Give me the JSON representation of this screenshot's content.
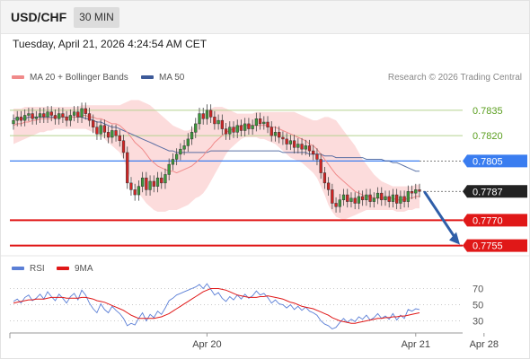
{
  "header": {
    "symbol": "USD/CHF",
    "timeframe": "30 MIN"
  },
  "timestamp": "Tuesday, April 21, 2026 4:24:54 AM CET",
  "legend": {
    "items": [
      {
        "label": "MA 20 + Bollinger Bands",
        "color": "#f08a8a"
      },
      {
        "label": "MA 50",
        "color": "#3d5a99"
      }
    ],
    "credit": "Research © 2026 Trading Central"
  },
  "chart_data": [
    {
      "type": "candlestick",
      "title": "",
      "ylim": [
        0.775,
        0.7845
      ],
      "levels": [
        {
          "value": 0.7835,
          "label": "0.7835",
          "kind": "resistance",
          "color": "#b5d38f",
          "text_color": "#5a9e1e"
        },
        {
          "value": 0.782,
          "label": "0.7820",
          "kind": "resistance",
          "color": "#b5d38f",
          "text_color": "#5a9e1e"
        },
        {
          "value": 0.7805,
          "label": "0.7805",
          "kind": "pivot",
          "color": "#3a7df0",
          "text_color": "#ffffff"
        },
        {
          "value": 0.7787,
          "label": "0.7787",
          "kind": "last",
          "color": "#222222",
          "text_color": "#ffffff"
        },
        {
          "value": 0.777,
          "label": "0.7770",
          "kind": "support",
          "color": "#e01818",
          "text_color": "#ffffff"
        },
        {
          "value": 0.7755,
          "label": "0.7755",
          "kind": "support",
          "color": "#e01818",
          "text_color": "#ffffff"
        }
      ],
      "x_labels": [
        {
          "label": "Apr 20",
          "index": 51
        },
        {
          "label": "Apr 21",
          "index": 106
        },
        {
          "label": "Apr 28",
          "index": 124
        }
      ],
      "forecast": {
        "from": 0.7787,
        "to": 0.7755
      },
      "close": [
        0.7829,
        0.7831,
        0.7829,
        0.7832,
        0.7833,
        0.783,
        0.7831,
        0.7833,
        0.7831,
        0.7834,
        0.7832,
        0.783,
        0.7833,
        0.7831,
        0.7829,
        0.7832,
        0.7834,
        0.7831,
        0.7836,
        0.7833,
        0.7829,
        0.7825,
        0.7821,
        0.7826,
        0.7822,
        0.7819,
        0.7823,
        0.782,
        0.7817,
        0.781,
        0.7792,
        0.7788,
        0.7785,
        0.779,
        0.7795,
        0.7788,
        0.7793,
        0.779,
        0.7795,
        0.7792,
        0.7797,
        0.7803,
        0.7806,
        0.7809,
        0.7812,
        0.7814,
        0.7818,
        0.7822,
        0.7827,
        0.7833,
        0.783,
        0.7835,
        0.7831,
        0.7827,
        0.7829,
        0.7824,
        0.7821,
        0.7825,
        0.7822,
        0.7826,
        0.7823,
        0.7827,
        0.7824,
        0.7826,
        0.783,
        0.7827,
        0.7828,
        0.7825,
        0.782,
        0.7822,
        0.7819,
        0.7818,
        0.7815,
        0.7817,
        0.7813,
        0.7815,
        0.7812,
        0.7814,
        0.7811,
        0.7809,
        0.7806,
        0.7798,
        0.7792,
        0.7788,
        0.778,
        0.7778,
        0.7782,
        0.7785,
        0.7781,
        0.7783,
        0.778,
        0.7784,
        0.7782,
        0.7785,
        0.7781,
        0.7783,
        0.7786,
        0.7782,
        0.7784,
        0.7781,
        0.7785,
        0.778,
        0.7784,
        0.7781,
        0.7787,
        0.7786,
        0.7788,
        0.7787
      ],
      "ma20": [
        0.7826,
        0.7827,
        0.7827,
        0.7828,
        0.7828,
        0.7829,
        0.7829,
        0.783,
        0.783,
        0.783,
        0.783,
        0.7831,
        0.7831,
        0.7831,
        0.7831,
        0.7831,
        0.7831,
        0.7831,
        0.7832,
        0.7832,
        0.7831,
        0.7831,
        0.783,
        0.783,
        0.7829,
        0.7828,
        0.7827,
        0.7827,
        0.7826,
        0.7824,
        0.7822,
        0.7819,
        0.7816,
        0.7814,
        0.7812,
        0.7809,
        0.7806,
        0.7804,
        0.7802,
        0.7801,
        0.78,
        0.7799,
        0.7799,
        0.7798,
        0.7799,
        0.78,
        0.7801,
        0.7802,
        0.7804,
        0.7806,
        0.7808,
        0.7811,
        0.7813,
        0.7816,
        0.7818,
        0.782,
        0.7822,
        0.7823,
        0.7824,
        0.7825,
        0.7826,
        0.7826,
        0.7826,
        0.7826,
        0.7826,
        0.7826,
        0.7826,
        0.7826,
        0.7825,
        0.7825,
        0.7824,
        0.7823,
        0.7822,
        0.7821,
        0.782,
        0.7819,
        0.7818,
        0.7817,
        0.7815,
        0.7814,
        0.7812,
        0.7809,
        0.7806,
        0.7803,
        0.78,
        0.7797,
        0.7795,
        0.7793,
        0.7791,
        0.7789,
        0.7787,
        0.7786,
        0.7785,
        0.7784,
        0.7784,
        0.7783,
        0.7783,
        0.7783,
        0.7783,
        0.7783,
        0.7783,
        0.7782,
        0.7782,
        0.7782,
        0.7783,
        0.7783,
        0.7784,
        0.7784
      ],
      "ma50": [
        0.783,
        0.783,
        0.783,
        0.783,
        0.7831,
        0.7831,
        0.7831,
        0.7831,
        0.7831,
        0.7831,
        0.7831,
        0.7831,
        0.7831,
        0.7831,
        0.7831,
        0.7831,
        0.7831,
        0.7831,
        0.7831,
        0.783,
        0.783,
        0.7829,
        0.7828,
        0.7828,
        0.7827,
        0.7826,
        0.7825,
        0.7825,
        0.7824,
        0.7823,
        0.7822,
        0.7821,
        0.782,
        0.7819,
        0.7818,
        0.7817,
        0.7816,
        0.7815,
        0.7814,
        0.7813,
        0.7812,
        0.7811,
        0.7811,
        0.781,
        0.781,
        0.781,
        0.781,
        0.781,
        0.781,
        0.781,
        0.781,
        0.781,
        0.7811,
        0.7811,
        0.7811,
        0.7811,
        0.7811,
        0.7811,
        0.7811,
        0.7811,
        0.7811,
        0.7811,
        0.7811,
        0.7811,
        0.7811,
        0.7811,
        0.7811,
        0.7811,
        0.7811,
        0.7811,
        0.7811,
        0.781,
        0.781,
        0.781,
        0.781,
        0.781,
        0.781,
        0.781,
        0.7809,
        0.7809,
        0.7809,
        0.7809,
        0.7808,
        0.7808,
        0.7808,
        0.7807,
        0.7807,
        0.7807,
        0.7807,
        0.7807,
        0.7807,
        0.7807,
        0.7807,
        0.7806,
        0.7806,
        0.7806,
        0.7806,
        0.7806,
        0.7805,
        0.7805,
        0.7804,
        0.7804,
        0.7803,
        0.7802,
        0.7801,
        0.78,
        0.7799,
        0.7799
      ],
      "bb_upper": [
        0.7836,
        0.7836,
        0.7836,
        0.7837,
        0.7837,
        0.7837,
        0.7837,
        0.7837,
        0.7837,
        0.7837,
        0.7837,
        0.7837,
        0.7837,
        0.7837,
        0.7837,
        0.7837,
        0.7837,
        0.7837,
        0.7838,
        0.7838,
        0.7838,
        0.7838,
        0.7838,
        0.7838,
        0.7838,
        0.7838,
        0.7838,
        0.7838,
        0.7838,
        0.7839,
        0.784,
        0.7841,
        0.7841,
        0.7841,
        0.784,
        0.7839,
        0.7838,
        0.7836,
        0.7834,
        0.7832,
        0.783,
        0.7828,
        0.7826,
        0.7825,
        0.7824,
        0.7823,
        0.7823,
        0.7824,
        0.7826,
        0.7829,
        0.7832,
        0.7835,
        0.7836,
        0.7837,
        0.7837,
        0.7837,
        0.7836,
        0.7835,
        0.7834,
        0.7833,
        0.7833,
        0.7833,
        0.7833,
        0.7833,
        0.7834,
        0.7834,
        0.7834,
        0.7834,
        0.7834,
        0.7834,
        0.7834,
        0.7834,
        0.7834,
        0.7834,
        0.7834,
        0.7833,
        0.7832,
        0.7831,
        0.783,
        0.7829,
        0.7829,
        0.783,
        0.7831,
        0.7831,
        0.783,
        0.7829,
        0.7826,
        0.7823,
        0.782,
        0.7817,
        0.7814,
        0.781,
        0.7806,
        0.7803,
        0.78,
        0.7797,
        0.7795,
        0.7793,
        0.7792,
        0.7791,
        0.779,
        0.779,
        0.779,
        0.779,
        0.779,
        0.779,
        0.7791,
        0.7791
      ],
      "bb_lower": [
        0.7815,
        0.7816,
        0.7817,
        0.7818,
        0.7819,
        0.782,
        0.7821,
        0.7822,
        0.7822,
        0.7823,
        0.7823,
        0.7824,
        0.7824,
        0.7824,
        0.7824,
        0.7824,
        0.7824,
        0.7824,
        0.7824,
        0.7824,
        0.7823,
        0.7822,
        0.7821,
        0.782,
        0.7818,
        0.7816,
        0.7814,
        0.7812,
        0.781,
        0.7806,
        0.78,
        0.7794,
        0.7789,
        0.7786,
        0.7783,
        0.778,
        0.7778,
        0.7776,
        0.7775,
        0.7775,
        0.7775,
        0.7776,
        0.7776,
        0.7776,
        0.7777,
        0.7778,
        0.7779,
        0.7781,
        0.7783,
        0.7784,
        0.7786,
        0.7789,
        0.7793,
        0.7797,
        0.7801,
        0.7805,
        0.7809,
        0.7812,
        0.7814,
        0.7816,
        0.7818,
        0.7819,
        0.7819,
        0.7819,
        0.7819,
        0.7818,
        0.7818,
        0.7817,
        0.7816,
        0.7815,
        0.7813,
        0.7811,
        0.7809,
        0.7807,
        0.7806,
        0.7805,
        0.7804,
        0.7802,
        0.78,
        0.7798,
        0.7795,
        0.779,
        0.7785,
        0.7779,
        0.7775,
        0.7772,
        0.7771,
        0.777,
        0.7771,
        0.7772,
        0.7773,
        0.7774,
        0.7775,
        0.7776,
        0.7776,
        0.7776,
        0.7776,
        0.7776,
        0.7776,
        0.7776,
        0.7776,
        0.7775,
        0.7775,
        0.7775,
        0.7776,
        0.7776,
        0.7777,
        0.7777
      ]
    },
    {
      "type": "line",
      "title": "",
      "legend": [
        {
          "name": "RSI",
          "color": "#5b7fd6"
        },
        {
          "name": "9MA",
          "color": "#e01818"
        }
      ],
      "ylim": [
        20,
        80
      ],
      "y_ticks": [
        70,
        50,
        30
      ],
      "series": [
        {
          "name": "RSI",
          "values": [
            54,
            57,
            52,
            59,
            62,
            55,
            58,
            63,
            57,
            66,
            60,
            55,
            63,
            58,
            52,
            60,
            64,
            56,
            68,
            62,
            52,
            45,
            40,
            51,
            44,
            40,
            48,
            43,
            39,
            33,
            24,
            27,
            25,
            33,
            40,
            30,
            38,
            34,
            42,
            38,
            46,
            55,
            58,
            62,
            64,
            66,
            68,
            70,
            72,
            75,
            70,
            76,
            69,
            62,
            65,
            58,
            54,
            60,
            56,
            62,
            57,
            63,
            58,
            61,
            67,
            62,
            64,
            59,
            52,
            56,
            51,
            50,
            46,
            50,
            44,
            48,
            43,
            47,
            42,
            40,
            37,
            30,
            26,
            24,
            20,
            22,
            28,
            33,
            28,
            32,
            29,
            35,
            32,
            37,
            31,
            34,
            39,
            33,
            36,
            32,
            39,
            31,
            37,
            33,
            44,
            42,
            45,
            44
          ]
        },
        {
          "name": "9MA",
          "values": [
            52,
            53,
            54,
            55,
            56,
            56,
            57,
            57,
            57,
            58,
            59,
            59,
            59,
            59,
            58,
            58,
            58,
            58,
            59,
            59,
            58,
            57,
            55,
            54,
            53,
            51,
            49,
            47,
            45,
            43,
            40,
            37,
            35,
            33,
            33,
            33,
            33,
            33,
            34,
            35,
            37,
            39,
            42,
            45,
            48,
            51,
            54,
            57,
            60,
            63,
            66,
            68,
            70,
            70,
            70,
            69,
            68,
            66,
            64,
            62,
            61,
            60,
            59,
            59,
            59,
            60,
            60,
            61,
            60,
            59,
            58,
            57,
            55,
            53,
            52,
            50,
            48,
            47,
            46,
            45,
            43,
            41,
            39,
            37,
            34,
            32,
            30,
            29,
            28,
            27,
            27,
            28,
            29,
            30,
            31,
            32,
            33,
            33,
            34,
            34,
            35,
            35,
            36,
            36,
            37,
            38,
            39,
            40
          ]
        }
      ]
    }
  ]
}
